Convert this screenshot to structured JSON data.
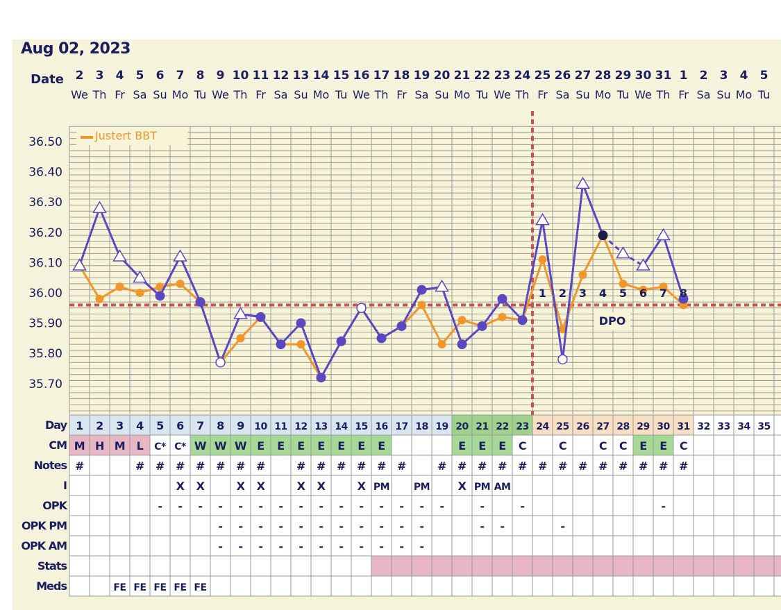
{
  "title": "Aug 02, 2023",
  "header": {
    "date_label": "Date",
    "dates": [
      "2",
      "3",
      "4",
      "5",
      "6",
      "7",
      "8",
      "9",
      "10",
      "11",
      "12",
      "13",
      "14",
      "15",
      "16",
      "17",
      "18",
      "19",
      "20",
      "21",
      "22",
      "23",
      "24",
      "25",
      "26",
      "27",
      "28",
      "29",
      "30",
      "31",
      "1",
      "2",
      "3",
      "4",
      "5"
    ],
    "weekdays": [
      "We",
      "Th",
      "Fr",
      "Sa",
      "Su",
      "Mo",
      "Tu",
      "We",
      "Th",
      "Fr",
      "Sa",
      "Su",
      "Mo",
      "Tu",
      "We",
      "Th",
      "Fr",
      "Sa",
      "Su",
      "Mo",
      "Tu",
      "We",
      "Th",
      "Fr",
      "Sa",
      "Su",
      "Mo",
      "Tu",
      "We",
      "Th",
      "Fr",
      "Sa",
      "Su",
      "Mo",
      "Tu"
    ]
  },
  "legend": {
    "label": "Justert BBT",
    "color": "#f0962a"
  },
  "chart_data": {
    "type": "line",
    "x": [
      1,
      2,
      3,
      4,
      5,
      6,
      7,
      8,
      9,
      10,
      11,
      12,
      13,
      14,
      15,
      16,
      17,
      18,
      19,
      20,
      21,
      22,
      23,
      24,
      25,
      26,
      27,
      28,
      29,
      30,
      31,
      32,
      33,
      34,
      35
    ],
    "ylim": [
      35.6,
      36.55
    ],
    "yticks": [
      "36.50",
      "36.40",
      "36.30",
      "36.20",
      "36.10",
      "36.00",
      "35.90",
      "35.80",
      "35.70"
    ],
    "series": [
      {
        "values": [
          36.09,
          36.28,
          36.12,
          36.05,
          35.99,
          36.12,
          35.97,
          35.77,
          35.93,
          35.92,
          35.83,
          35.9,
          35.72,
          35.84,
          35.95,
          35.85,
          35.89,
          36.01,
          36.02,
          35.83,
          35.89,
          35.98,
          35.91,
          36.24,
          35.78,
          36.36,
          36.19,
          36.13,
          36.09,
          36.19,
          35.98,
          null,
          null,
          null,
          null
        ],
        "color": "#5a48c0",
        "markers": [
          "tri",
          "tri",
          "tri",
          "tri",
          "dot",
          "tri",
          "dot",
          "open",
          "tri",
          "dot",
          "dot",
          "dot",
          "dot",
          "dot",
          "open",
          "dot",
          "dot",
          "dot",
          "tri",
          "dot",
          "dot",
          "dot",
          "dot",
          "tri",
          "open",
          "tri",
          "dark",
          "tri",
          "tri",
          "tri",
          "dot",
          "",
          "",
          "",
          ""
        ],
        "dashed_segment": [
          26,
          28
        ]
      },
      {
        "name": "Justert BBT",
        "values": [
          36.09,
          35.98,
          36.02,
          36.0,
          36.02,
          36.03,
          35.97,
          35.77,
          35.85,
          35.92,
          35.83,
          35.83,
          35.72,
          35.84,
          35.95,
          35.85,
          35.89,
          35.96,
          35.83,
          35.91,
          35.89,
          35.92,
          35.91,
          36.11,
          35.88,
          36.06,
          36.19,
          36.03,
          36.01,
          36.02,
          35.96,
          null,
          null,
          null,
          null
        ],
        "color": "#f0962a"
      }
    ],
    "coverline": 35.96,
    "ovulation_day": 23,
    "dpo_labels": [
      "1",
      "2",
      "3",
      "4",
      "5",
      "6",
      "7",
      "8"
    ],
    "dpo_text": "DPO"
  },
  "rows": {
    "day": {
      "label": "Day",
      "values": [
        "1",
        "2",
        "3",
        "4",
        "5",
        "6",
        "7",
        "8",
        "9",
        "10",
        "11",
        "12",
        "13",
        "14",
        "15",
        "16",
        "17",
        "18",
        "19",
        "20",
        "21",
        "22",
        "23",
        "24",
        "25",
        "26",
        "27",
        "28",
        "29",
        "30",
        "31",
        "32",
        "33",
        "34",
        "35"
      ]
    },
    "cm": {
      "label": "CM",
      "values": [
        "M",
        "H",
        "M",
        "L",
        "C*",
        "C*",
        "W",
        "W",
        "W",
        "E",
        "E",
        "E",
        "E",
        "E",
        "E",
        "E",
        "",
        "",
        "",
        "E",
        "E",
        "E",
        "C",
        "",
        "C",
        "",
        "C",
        "C",
        "E",
        "E",
        "C",
        "",
        "",
        "",
        ""
      ]
    },
    "notes": {
      "label": "Notes",
      "values": [
        "#",
        "",
        "",
        "#",
        "#",
        "#",
        "#",
        "#",
        "#",
        "#",
        "",
        "#",
        "#",
        "#",
        "#",
        "#",
        "#",
        "",
        "#",
        "#",
        "#",
        "#",
        "#",
        "#",
        "#",
        "#",
        "#",
        "#",
        "#",
        "#",
        "#",
        "",
        "",
        "",
        ""
      ]
    },
    "i": {
      "label": "I",
      "values": [
        "",
        "",
        "",
        "",
        "",
        "X",
        "X",
        "",
        "X",
        "X",
        "",
        "X",
        "X",
        "",
        "X",
        "PM",
        "",
        "PM",
        "",
        "X",
        "PM",
        "AM",
        "",
        "",
        "",
        "",
        "",
        "",
        "",
        "",
        "",
        "",
        "",
        "",
        ""
      ]
    },
    "opk": {
      "label": "OPK",
      "values": [
        "",
        "",
        "",
        "",
        "-",
        "-",
        "-",
        "-",
        "-",
        "-",
        "-",
        "-",
        "-",
        "-",
        "-",
        "-",
        "-",
        "-",
        "-",
        "",
        "-",
        "",
        "-",
        "",
        "",
        "",
        "",
        "",
        "",
        "-",
        "",
        "",
        "",
        "",
        ""
      ]
    },
    "opkpm": {
      "label": "OPK PM",
      "values": [
        "",
        "",
        "",
        "",
        "",
        "",
        "",
        "-",
        "-",
        "-",
        "-",
        "-",
        "-",
        "-",
        "-",
        "-",
        "-",
        "-",
        "",
        "",
        "-",
        "-",
        "",
        "",
        "-",
        "",
        "",
        "",
        "",
        "",
        "",
        "",
        "",
        "",
        ""
      ]
    },
    "opkam": {
      "label": "OPK AM",
      "values": [
        "",
        "",
        "",
        "",
        "",
        "",
        "",
        "-",
        "-",
        "-",
        "-",
        "-",
        "-",
        "-",
        "-",
        "-",
        "-",
        "-",
        "",
        "",
        "",
        "",
        "",
        "",
        "",
        "",
        "",
        "",
        "",
        "",
        "",
        "",
        "",
        "",
        ""
      ]
    },
    "stats": {
      "label": "Stats",
      "values": []
    },
    "meds": {
      "label": "Meds",
      "values": [
        "",
        "",
        "FE",
        "FE",
        "FE",
        "FE",
        "FE",
        "",
        "",
        "",
        "",
        "",
        "",
        "",
        "",
        "",
        "",
        "",
        "",
        "",
        "",
        "",
        "",
        "",
        "",
        "",
        "",
        "",
        "",
        "",
        "",
        "",
        "",
        "",
        ""
      ]
    }
  }
}
